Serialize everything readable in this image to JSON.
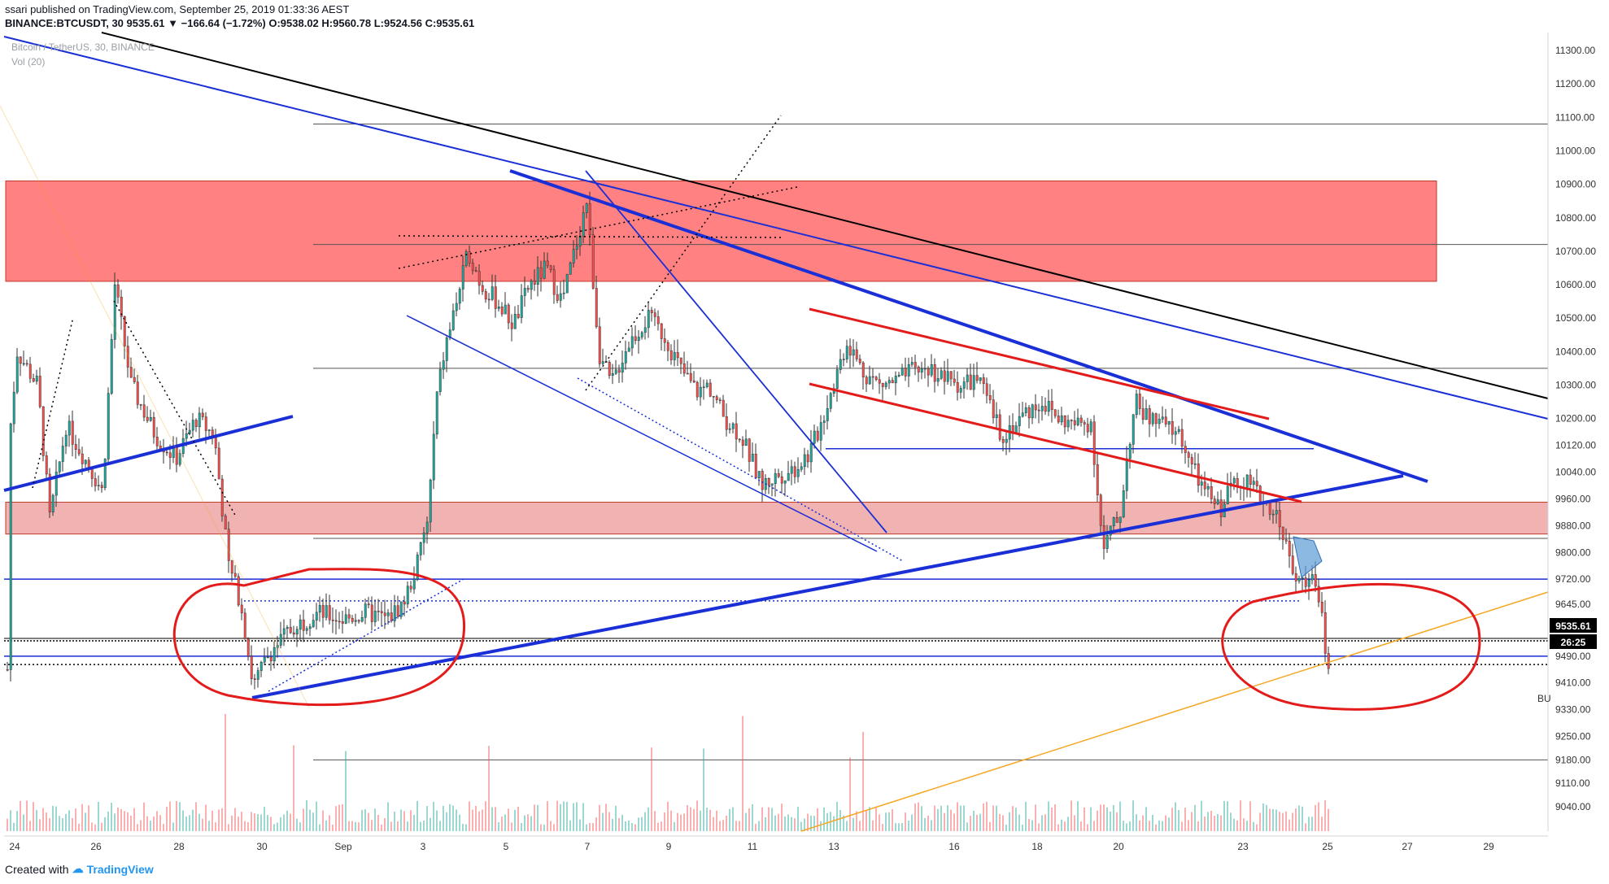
{
  "header": {
    "user": "ssari",
    "published_text": "published on TradingView.com, September 25, 2019 01:33:36 AEST",
    "symbol_line": "BINANCE:BTCUSDT, 30",
    "last": "9535.61",
    "change": "▼ −166.64 (−1.72%)",
    "ohlc": "O:9538.02 H:9560.78 L:9524.56 C:9535.61",
    "legend_title": "Bitcoin / TetherUS, 30, BINANCE",
    "legend_vol": "Vol (20)"
  },
  "footer": {
    "created_with": "Created with",
    "brand": "TradingView"
  },
  "price_badge": {
    "price": "9535.61",
    "timer": "26:25"
  },
  "side_label": "BU",
  "colors": {
    "up": "#26a69a",
    "down": "#ef5350",
    "zone_red": "#ff6b6b",
    "zone_pink": "#e57373",
    "trend_blue": "#1a2fd6",
    "ellipse_red": "#e31b1b",
    "orange": "#f5a623"
  },
  "chart_data": {
    "type": "candlestick",
    "symbol": "BINANCE:BTCUSDT",
    "interval": "30",
    "y_ticks": [
      11300,
      11200,
      11100,
      11000,
      10900,
      10800,
      10700,
      10600,
      10500,
      10400,
      10300,
      10200,
      10120,
      10040,
      9960,
      9880,
      9800,
      9720,
      9645,
      9570,
      9490,
      9410,
      9330,
      9250,
      9180,
      9110,
      9040
    ],
    "x_ticks": [
      "24",
      "26",
      "28",
      "30",
      "Sep",
      "3",
      "5",
      "7",
      "9",
      "11",
      "13",
      "16",
      "18",
      "20",
      "23",
      "25",
      "27",
      "29"
    ],
    "horizontal_levels": [
      11080,
      10720,
      10350,
      9842,
      9180
    ],
    "blue_levels": [
      9720,
      9490,
      10110
    ],
    "dotted_levels": [
      9655,
      9465,
      9535
    ],
    "zones": [
      {
        "name": "resistance-zone",
        "from": 10610,
        "to": 10910
      },
      {
        "name": "support-zone",
        "from": 9855,
        "to": 9950
      }
    ],
    "last_price": 9535.61,
    "ohlc": {
      "open": 9538.02,
      "high": 9560.78,
      "low": 9524.56,
      "close": 9535.61
    }
  }
}
